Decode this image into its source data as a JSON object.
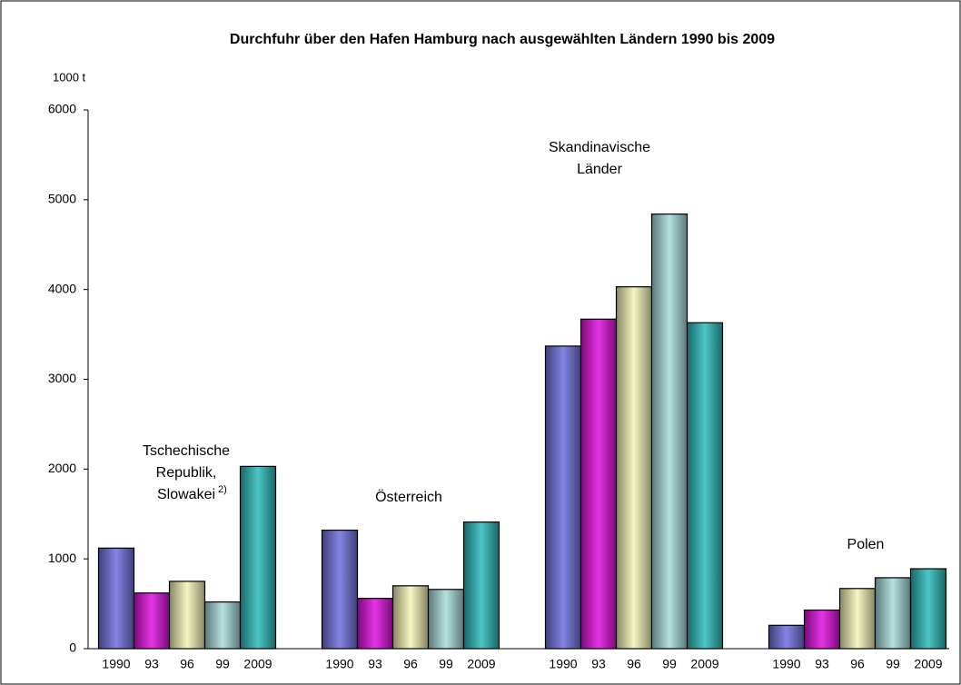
{
  "chart_data": {
    "type": "bar",
    "title": "Durchfuhr über den Hafen Hamburg nach ausgewählten Ländern 1990 bis 2009",
    "y_axis_label": "1000 t",
    "categories": [
      [
        "Tschechische",
        "Republik,",
        "Slowakei"
      ],
      [
        "Österreich"
      ],
      [
        "Skandinavische",
        "Länder"
      ],
      [
        "Polen"
      ]
    ],
    "category_notes": [
      "2)",
      null,
      null,
      null
    ],
    "series": [
      {
        "name": "1990",
        "color": "#7070e0",
        "values": [
          1120,
          1320,
          3370,
          260
        ]
      },
      {
        "name": "93",
        "color": "#e010e0",
        "values": [
          620,
          560,
          3670,
          430
        ]
      },
      {
        "name": "96",
        "color": "#f4f4b8",
        "values": [
          750,
          700,
          4030,
          670
        ]
      },
      {
        "name": "99",
        "color": "#a8dcdc",
        "values": [
          520,
          660,
          4840,
          790
        ]
      },
      {
        "name": "2009",
        "color": "#2cbcbc",
        "values": [
          2030,
          1410,
          3630,
          890
        ]
      }
    ],
    "ylim": [
      0,
      6000
    ],
    "yticks": [
      0,
      1000,
      2000,
      3000,
      4000,
      5000,
      6000
    ],
    "grid": false
  }
}
